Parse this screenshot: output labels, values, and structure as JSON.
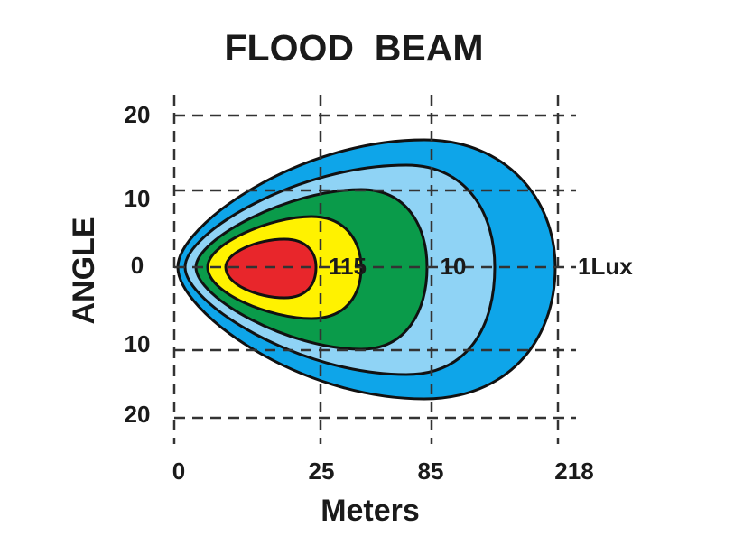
{
  "title": "FLOOD  BEAM",
  "y_axis": {
    "label": "ANGLE",
    "ticks": [
      "20",
      "10",
      "0",
      "10",
      "20"
    ]
  },
  "x_axis": {
    "label": "Meters",
    "ticks": [
      "0",
      "25",
      "85",
      "218"
    ]
  },
  "contour_labels": [
    "115",
    "10",
    "1Lux"
  ]
}
